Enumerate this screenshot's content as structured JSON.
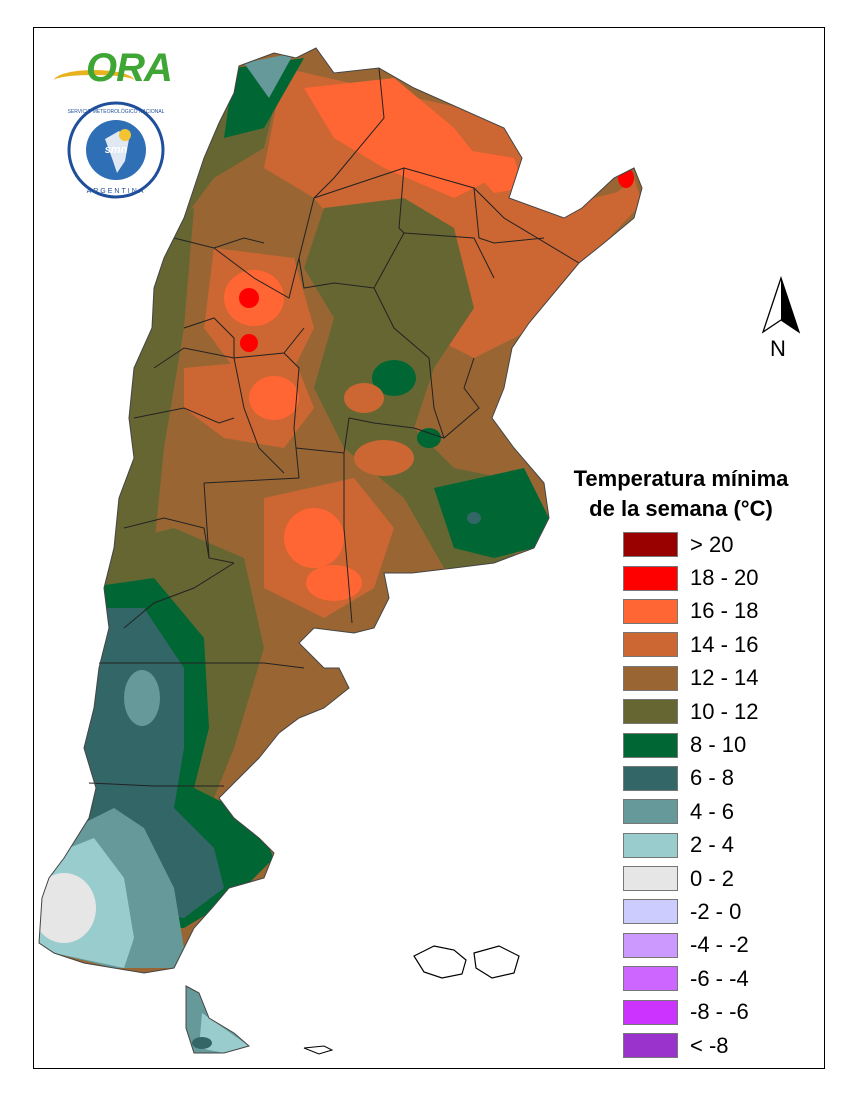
{
  "logos": {
    "ora": {
      "text": "ORA",
      "icon": "ora-logo-icon"
    },
    "smn": {
      "ring_text": "SERVICIO METEOROLÓGICO NACIONAL",
      "bottom_text": "ARGENTINA",
      "center_text": "smn",
      "icon": "smn-seal-icon"
    }
  },
  "north_arrow": {
    "label": "N",
    "icon": "north-arrow-icon"
  },
  "legend": {
    "title_line1": "Temperatura mínima",
    "title_line2": "de la semana (°C)",
    "items": [
      {
        "label": "> 20",
        "color": "#990000"
      },
      {
        "label": "18 - 20",
        "color": "#ff0000"
      },
      {
        "label": "16 - 18",
        "color": "#ff6633"
      },
      {
        "label": "14 - 16",
        "color": "#cc6633"
      },
      {
        "label": "12 - 14",
        "color": "#996633"
      },
      {
        "label": "10 - 12",
        "color": "#666633"
      },
      {
        "label": "8 - 10",
        "color": "#006633"
      },
      {
        "label": "6 - 8",
        "color": "#336666"
      },
      {
        "label": "4 - 6",
        "color": "#669999"
      },
      {
        "label": "2 - 4",
        "color": "#99cccc"
      },
      {
        "label": "0 - 2",
        "color": "#e6e6e6"
      },
      {
        "label": "-2 - 0",
        "color": "#ccccff"
      },
      {
        "label": "-4 - -2",
        "color": "#cc99ff"
      },
      {
        "label": "-6 - -4",
        "color": "#cc66ff"
      },
      {
        "label": "-8 - -6",
        "color": "#cc33ff"
      },
      {
        "label": "< -8",
        "color": "#9933cc"
      }
    ]
  }
}
